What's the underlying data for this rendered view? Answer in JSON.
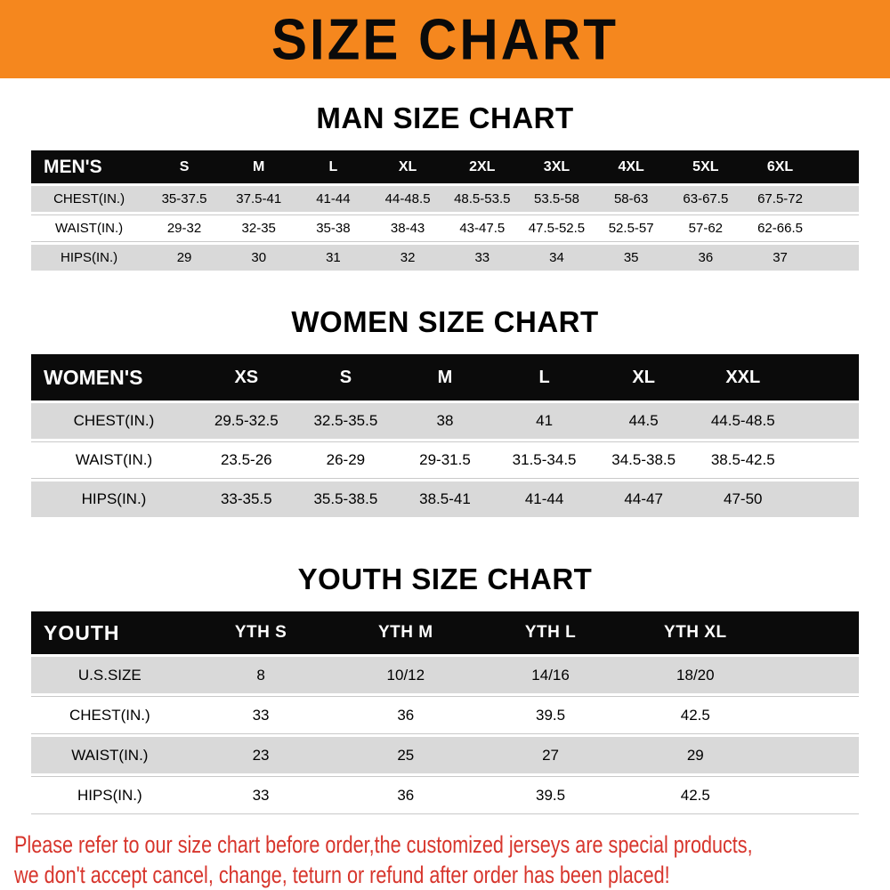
{
  "banner": {
    "title": "SIZE CHART"
  },
  "sections": [
    {
      "heading": "MAN SIZE CHART",
      "table": {
        "columns": [
          "MEN'S",
          "S",
          "M",
          "L",
          "XL",
          "2XL",
          "3XL",
          "4XL",
          "5XL",
          "6XL"
        ],
        "rows": [
          [
            "CHEST(IN.)",
            "35-37.5",
            "37.5-41",
            "41-44",
            "44-48.5",
            "48.5-53.5",
            "53.5-58",
            "58-63",
            "63-67.5",
            "67.5-72"
          ],
          [
            "WAIST(IN.)",
            "29-32",
            "32-35",
            "35-38",
            "38-43",
            "43-47.5",
            "47.5-52.5",
            "52.5-57",
            "57-62",
            "62-66.5"
          ],
          [
            "HIPS(IN.)",
            "29",
            "30",
            "31",
            "32",
            "33",
            "34",
            "35",
            "36",
            "37"
          ]
        ]
      }
    },
    {
      "heading": "WOMEN SIZE CHART",
      "table": {
        "columns": [
          "WOMEN'S",
          "XS",
          "S",
          "M",
          "L",
          "XL",
          "XXL"
        ],
        "rows": [
          [
            "CHEST(IN.)",
            "29.5-32.5",
            "32.5-35.5",
            "38",
            "41",
            "44.5",
            "44.5-48.5"
          ],
          [
            "WAIST(IN.)",
            "23.5-26",
            "26-29",
            "29-31.5",
            "31.5-34.5",
            "34.5-38.5",
            "38.5-42.5"
          ],
          [
            "HIPS(IN.)",
            "33-35.5",
            "35.5-38.5",
            "38.5-41",
            "41-44",
            "44-47",
            "47-50"
          ]
        ]
      }
    },
    {
      "heading": "YOUTH SIZE CHART",
      "table": {
        "columns": [
          "YOUTH",
          "YTH S",
          "YTH M",
          "YTH L",
          "YTH XL"
        ],
        "rows": [
          [
            "U.S.SIZE",
            "8",
            "10/12",
            "14/16",
            "18/20"
          ],
          [
            "CHEST(IN.)",
            "33",
            "36",
            "39.5",
            "42.5"
          ],
          [
            "WAIST(IN.)",
            "23",
            "25",
            "27",
            "29"
          ],
          [
            "HIPS(IN.)",
            "33",
            "36",
            "39.5",
            "42.5"
          ]
        ]
      }
    }
  ],
  "footer": {
    "lines": [
      "Please refer to our size chart before order,the customized jerseys are special products,",
      "we don't accept cancel, change, teturn or refund after order has been placed!"
    ]
  },
  "colors": {
    "banner_bg": "#f5871e",
    "header_bg": "#0b0b0b",
    "stripe_bg": "#d9d9d9",
    "note_color": "#d7352c"
  }
}
